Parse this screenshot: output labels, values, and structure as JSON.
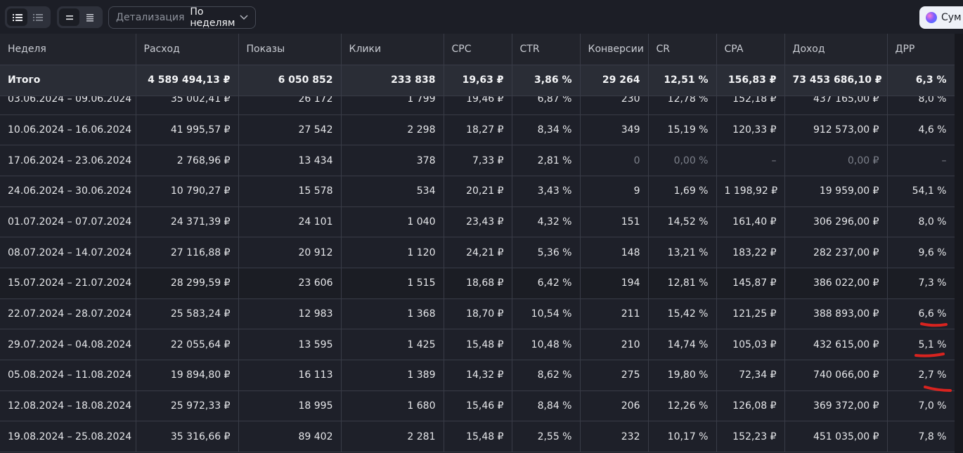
{
  "toolbar": {
    "view_icons": [
      "list-icon",
      "list-compact-icon"
    ],
    "density_icons": [
      "density-low-icon",
      "density-high-icon"
    ],
    "detail_label": "Детализация",
    "detail_value": "По неделям",
    "sum_label": "Сум"
  },
  "table": {
    "headers": [
      "Неделя",
      "Расход",
      "Показы",
      "Клики",
      "CPC",
      "CTR",
      "Конверсии",
      "CR",
      "CPA",
      "Доход",
      "ДРР"
    ],
    "total": [
      "Итого",
      "4 589 494,13 ₽",
      "6 050 852",
      "233 838",
      "19,63 ₽",
      "3,86 %",
      "29 264",
      "12,51 %",
      "156,83 ₽",
      "73 453 686,10 ₽",
      "6,3 %"
    ],
    "partial_row": [
      "03.06.2024 – 09.06.2024",
      "35 002,41 ₽",
      "26 172",
      "1 799",
      "19,46 ₽",
      "6,87 %",
      "230",
      "12,78 %",
      "152,18 ₽",
      "437 165,00 ₽",
      "8,0 %"
    ],
    "rows": [
      [
        "10.06.2024 – 16.06.2024",
        "41 995,57 ₽",
        "27 542",
        "2 298",
        "18,27 ₽",
        "8,34 %",
        "349",
        "15,19 %",
        "120,33 ₽",
        "912 573,00 ₽",
        "4,6 %"
      ],
      [
        "17.06.2024 – 23.06.2024",
        "2 768,96 ₽",
        "13 434",
        "378",
        "7,33 ₽",
        "2,81 %",
        "0",
        "0,00 %",
        "–",
        "0,00 ₽",
        "–"
      ],
      [
        "24.06.2024 – 30.06.2024",
        "10 790,27 ₽",
        "15 578",
        "534",
        "20,21 ₽",
        "3,43 %",
        "9",
        "1,69 %",
        "1 198,92 ₽",
        "19 959,00 ₽",
        "54,1 %"
      ],
      [
        "01.07.2024 – 07.07.2024",
        "24 371,39 ₽",
        "24 101",
        "1 040",
        "23,43 ₽",
        "4,32 %",
        "151",
        "14,52 %",
        "161,40 ₽",
        "306 296,00 ₽",
        "8,0 %"
      ],
      [
        "08.07.2024 – 14.07.2024",
        "27 116,88 ₽",
        "20 912",
        "1 120",
        "24,21 ₽",
        "5,36 %",
        "148",
        "13,21 %",
        "183,22 ₽",
        "282 237,00 ₽",
        "9,6 %"
      ],
      [
        "15.07.2024 – 21.07.2024",
        "28 299,59 ₽",
        "23 606",
        "1 515",
        "18,68 ₽",
        "6,42 %",
        "194",
        "12,81 %",
        "145,87 ₽",
        "386 022,00 ₽",
        "7,3 %"
      ],
      [
        "22.07.2024 – 28.07.2024",
        "25 583,24 ₽",
        "12 983",
        "1 368",
        "18,70 ₽",
        "10,54 %",
        "211",
        "15,42 %",
        "121,25 ₽",
        "388 893,00 ₽",
        "6,6 %"
      ],
      [
        "29.07.2024 – 04.08.2024",
        "22 055,64 ₽",
        "13 595",
        "1 425",
        "15,48 ₽",
        "10,48 %",
        "210",
        "14,74 %",
        "105,03 ₽",
        "432 615,00 ₽",
        "5,1 %"
      ],
      [
        "05.08.2024 – 11.08.2024",
        "19 894,80 ₽",
        "16 113",
        "1 389",
        "14,32 ₽",
        "8,62 %",
        "275",
        "19,80 %",
        "72,34 ₽",
        "740 066,00 ₽",
        "2,7 %"
      ],
      [
        "12.08.2024 – 18.08.2024",
        "25 972,33 ₽",
        "18 995",
        "1 680",
        "15,46 ₽",
        "8,84 %",
        "206",
        "12,26 %",
        "126,08 ₽",
        "369 372,00 ₽",
        "7,0 %"
      ],
      [
        "19.08.2024 – 25.08.2024",
        "35 316,66 ₽",
        "89 402",
        "2 281",
        "15,48 ₽",
        "2,55 %",
        "232",
        "10,17 %",
        "152,23 ₽",
        "451 035,00 ₽",
        "7,8 %"
      ]
    ],
    "muted_cells": [
      [
        1,
        6
      ],
      [
        1,
        7
      ],
      [
        1,
        8
      ],
      [
        1,
        9
      ],
      [
        1,
        10
      ]
    ],
    "dark_rows": [
      5
    ]
  },
  "annotation_color": "#d8231f"
}
